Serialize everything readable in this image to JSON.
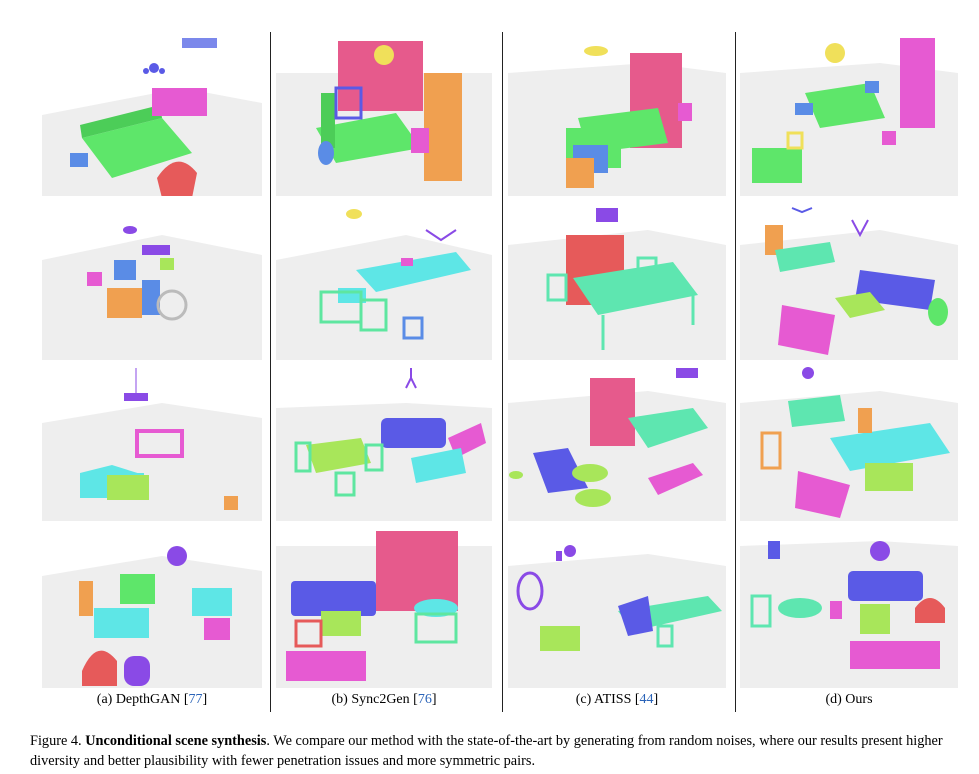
{
  "columns": [
    {
      "label": "(a) DepthGAN [",
      "cite": "77",
      "end": "]"
    },
    {
      "label": "(b) Sync2Gen [",
      "cite": "76",
      "end": "]"
    },
    {
      "label": "(c) ATISS [",
      "cite": "44",
      "end": "]"
    },
    {
      "label": "(d) Ours",
      "cite": "",
      "end": ""
    }
  ],
  "caption": {
    "prefix": "Figure 4. ",
    "title": "Unconditional scene synthesis",
    "body": ". We compare our method with the state-of-the-art by generating from random noises, where our results present higher diversity and better plausibility with fewer penetration issues and more symmetric pairs."
  },
  "colors": {
    "bed": "#5ee66a",
    "sofa_blue": "#5a5ae6",
    "sofa_cyan": "#5ee6e6",
    "cabinet_pink": "#e65a8c",
    "magenta": "#e65ad2",
    "orange": "#f0a050",
    "red": "#e65a5a",
    "purple": "#8a4ae6",
    "yellow": "#f0e05a",
    "lime": "#a8e65a",
    "table_teal": "#5ae6b0",
    "floor": "#f2f2f2"
  }
}
